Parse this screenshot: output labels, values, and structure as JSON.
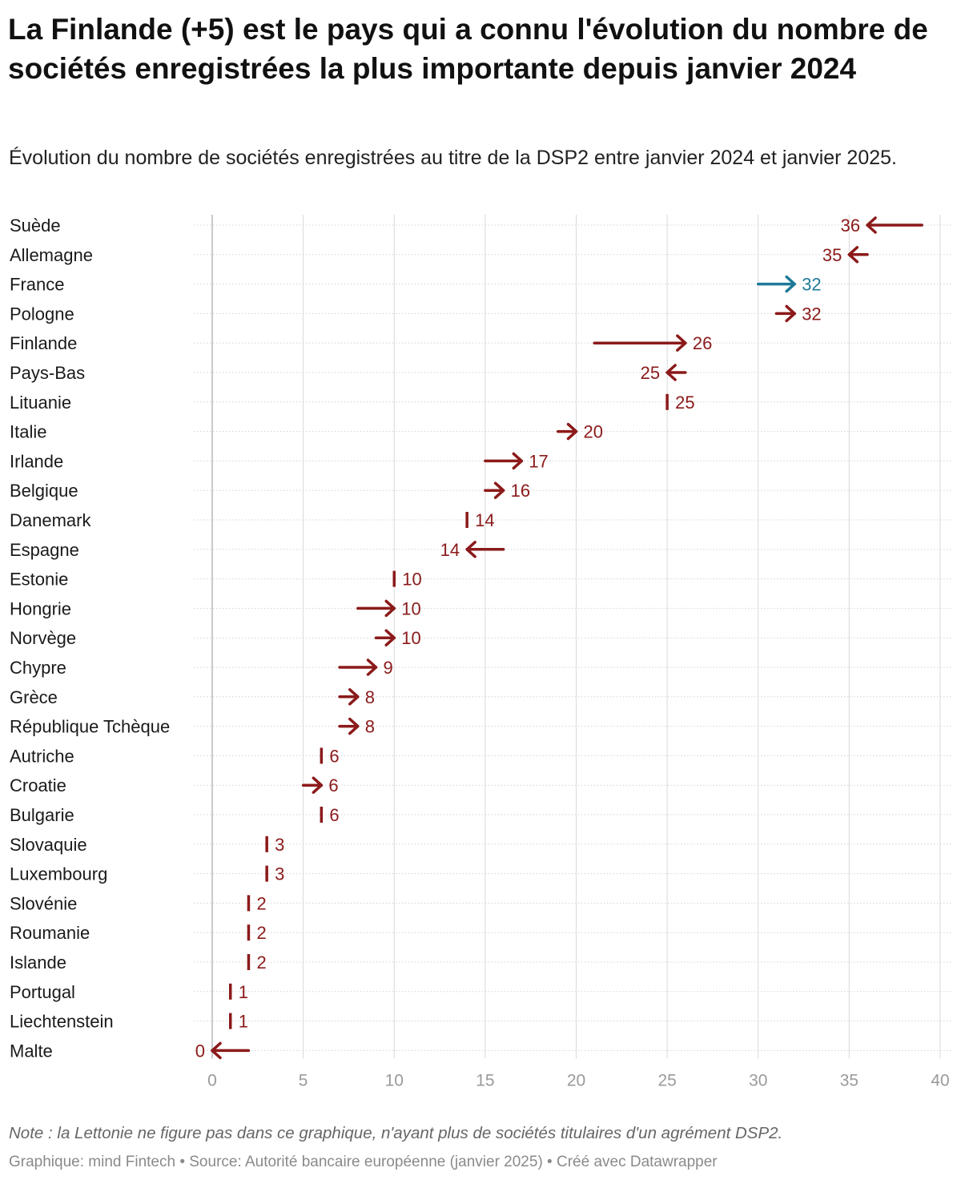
{
  "header": {
    "title": "La Finlande (+5) est le pays qui a connu l'évolution du nombre de sociétés enregistrées la plus importante depuis janvier 2024",
    "subtitle": "Évolution du nombre de sociétés enregistrées au titre de la DSP2 entre janvier 2024 et janvier 2025."
  },
  "footer": {
    "note": "Note : la Lettonie ne figure pas dans ce graphique, n'ayant plus de sociétés titulaires d'un agrément DSP2.",
    "credit": "Graphique: mind Fintech • Source: Autorité bancaire européenne (janvier 2025) • Créé avec Datawrapper"
  },
  "colors": {
    "default": "#8b1a1a",
    "highlight": "#1f7a99",
    "grid": "#d9d9d9",
    "tick_label": "#9a9a9a"
  },
  "chart_data": {
    "type": "arrow",
    "xlim": [
      0,
      40
    ],
    "xticks": [
      0,
      5,
      10,
      15,
      20,
      25,
      30,
      35,
      40
    ],
    "grid": true,
    "highlight": "France",
    "series": [
      {
        "name": "janvier 2024",
        "values": [
          39,
          36,
          30,
          31,
          21,
          26,
          25,
          19,
          15,
          15,
          14,
          16,
          10,
          8,
          9,
          7,
          7,
          7,
          6,
          5,
          6,
          3,
          3,
          2,
          2,
          2,
          1,
          1,
          2
        ]
      },
      {
        "name": "janvier 2025",
        "values": [
          36,
          35,
          32,
          32,
          26,
          25,
          25,
          20,
          17,
          16,
          14,
          14,
          10,
          10,
          10,
          9,
          8,
          8,
          6,
          6,
          6,
          3,
          3,
          2,
          2,
          2,
          1,
          1,
          0
        ]
      }
    ],
    "categories": [
      "Suède",
      "Allemagne",
      "France",
      "Pologne",
      "Finlande",
      "Pays-Bas",
      "Lituanie",
      "Italie",
      "Irlande",
      "Belgique",
      "Danemark",
      "Espagne",
      "Estonie",
      "Hongrie",
      "Norvège",
      "Chypre",
      "Grèce",
      "République Tchèque",
      "Autriche",
      "Croatie",
      "Bulgarie",
      "Slovaquie",
      "Luxembourg",
      "Slovénie",
      "Roumanie",
      "Islande",
      "Portugal",
      "Liechtenstein",
      "Malte"
    ]
  }
}
